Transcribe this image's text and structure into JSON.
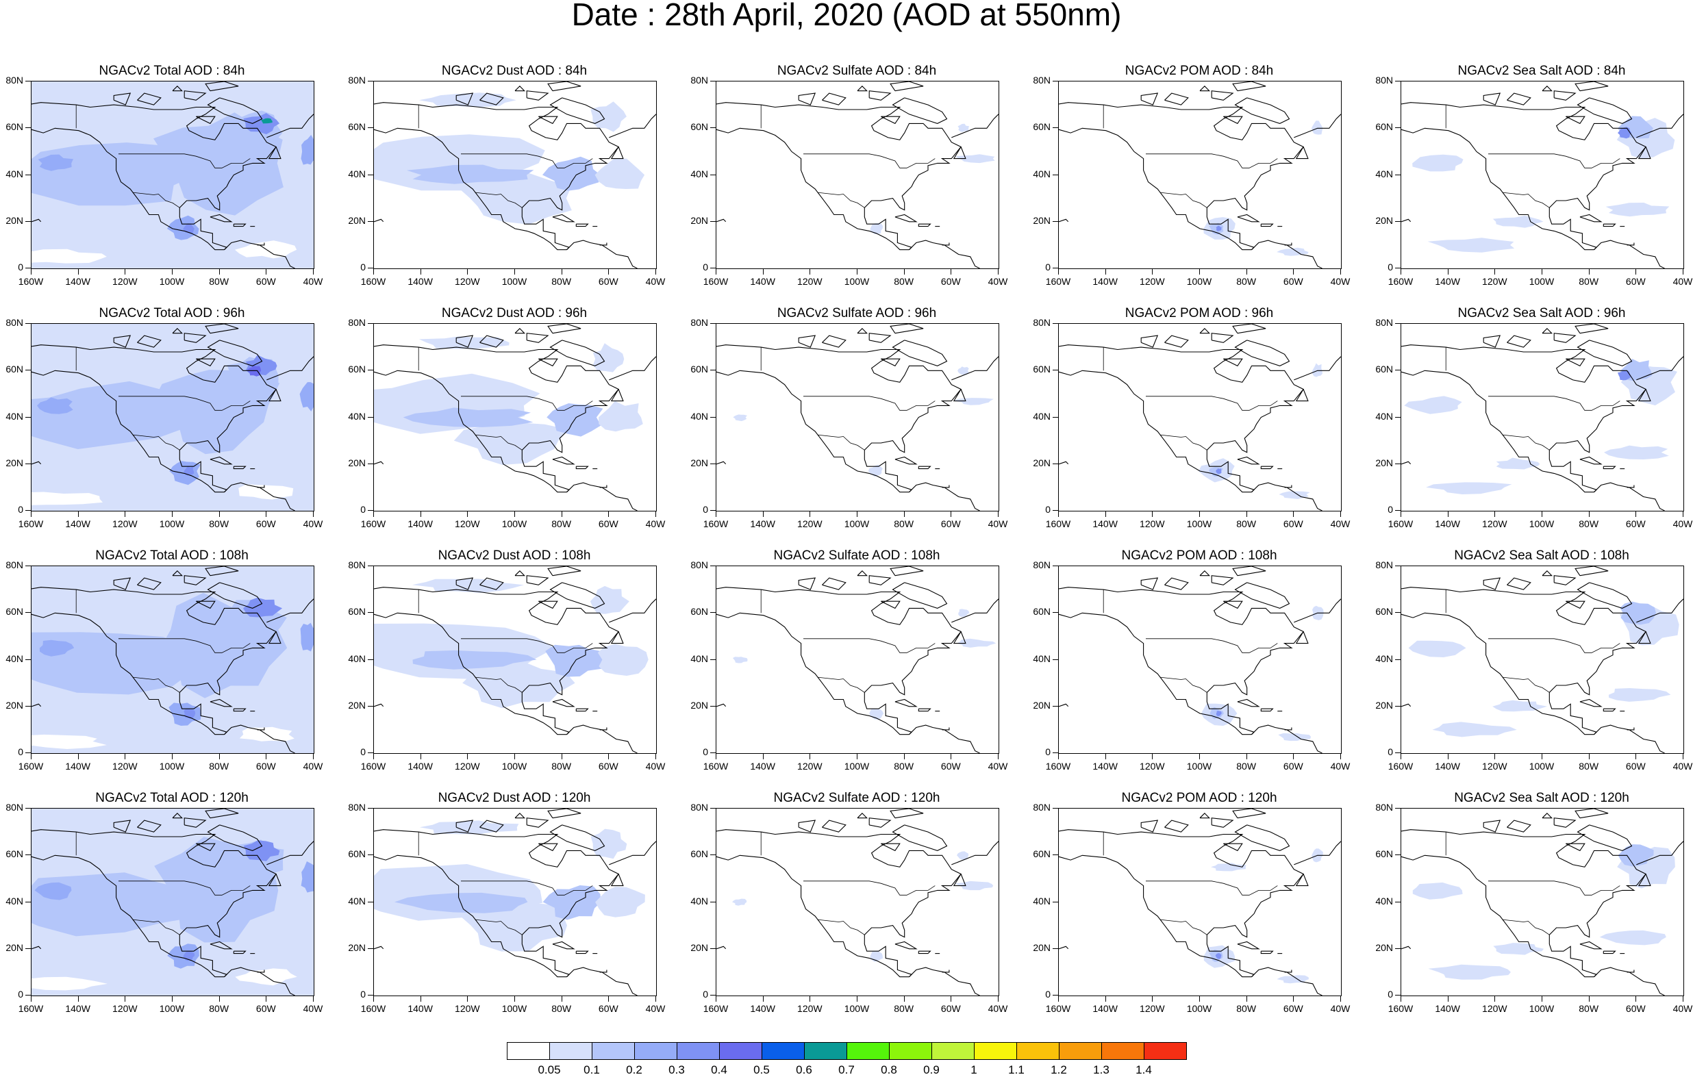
{
  "title": "Date : 28th April, 2020 (AOD at 550nm)",
  "lat_labels": [
    "80N",
    "60N",
    "40N",
    "20N",
    "0"
  ],
  "lon_labels": [
    "160W",
    "140W",
    "120W",
    "100W",
    "80W",
    "60W",
    "40W"
  ],
  "colorbar": {
    "colors": [
      "#ffffff",
      "#d6e0fb",
      "#b4c6fa",
      "#95acf8",
      "#7f92f4",
      "#6a6cef",
      "#0a5fea",
      "#0a9a96",
      "#55f50b",
      "#8cf50b",
      "#c0f53a",
      "#f8f50b",
      "#fac20a",
      "#f89d0b",
      "#f8770a",
      "#f52f14"
    ],
    "labels": [
      "0.05",
      "0.1",
      "0.2",
      "0.3",
      "0.4",
      "0.5",
      "0.6",
      "0.7",
      "0.8",
      "0.9",
      "1",
      "1.1",
      "1.2",
      "1.3",
      "1.4"
    ]
  },
  "panels": [
    {
      "title": "NGACv2 Total AOD : 84h",
      "species": "total"
    },
    {
      "title": "NGACv2 Dust AOD : 84h",
      "species": "dust"
    },
    {
      "title": "NGACv2 Sulfate AOD : 84h",
      "species": "sulfate"
    },
    {
      "title": "NGACv2 POM AOD : 84h",
      "species": "pom"
    },
    {
      "title": "NGACv2 Sea Salt AOD : 84h",
      "species": "seasalt"
    },
    {
      "title": "NGACv2 Total AOD : 96h",
      "species": "total"
    },
    {
      "title": "NGACv2 Dust AOD : 96h",
      "species": "dust"
    },
    {
      "title": "NGACv2 Sulfate AOD : 96h",
      "species": "sulfate"
    },
    {
      "title": "NGACv2 POM AOD : 96h",
      "species": "pom"
    },
    {
      "title": "NGACv2 Sea Salt AOD : 96h",
      "species": "seasalt"
    },
    {
      "title": "NGACv2 Total AOD : 108h",
      "species": "total"
    },
    {
      "title": "NGACv2 Dust AOD : 108h",
      "species": "dust"
    },
    {
      "title": "NGACv2 Sulfate AOD : 108h",
      "species": "sulfate"
    },
    {
      "title": "NGACv2 POM AOD : 108h",
      "species": "pom"
    },
    {
      "title": "NGACv2 Sea Salt AOD : 108h",
      "species": "seasalt"
    },
    {
      "title": "NGACv2 Total AOD : 120h",
      "species": "total"
    },
    {
      "title": "NGACv2 Dust AOD : 120h",
      "species": "dust"
    },
    {
      "title": "NGACv2 Sulfate AOD : 120h",
      "species": "sulfate"
    },
    {
      "title": "NGACv2 POM AOD : 120h",
      "species": "pom"
    },
    {
      "title": "NGACv2 Sea Salt  AOD : 120h",
      "species": "seasalt"
    }
  ]
}
